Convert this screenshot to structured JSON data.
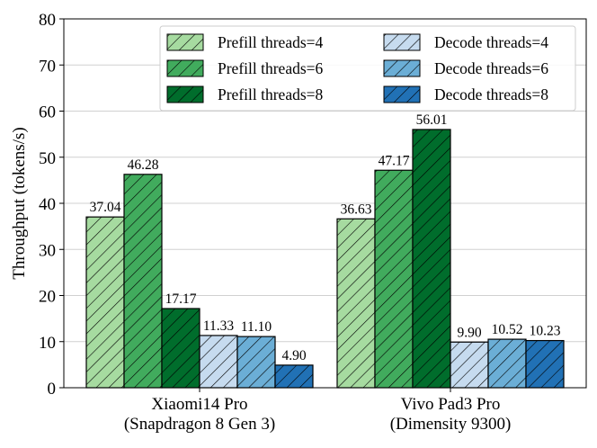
{
  "chart_data": {
    "type": "bar",
    "title": "",
    "xlabel": "",
    "ylabel": "Throughput (tokens/s)",
    "ylim": [
      0,
      80
    ],
    "yticks": [
      0,
      10,
      20,
      30,
      40,
      50,
      60,
      70,
      80
    ],
    "grid": true,
    "legend_position": "top-right",
    "categories": [
      [
        "Xiaomi14 Pro",
        "(Snapdragon 8 Gen 3)"
      ],
      [
        "Vivo Pad3 Pro",
        "(Dimensity 9300)"
      ]
    ],
    "series": [
      {
        "name": "Prefill threads=4",
        "color": "#a6dba0",
        "values": [
          37.04,
          36.63
        ],
        "labels": [
          "37.04",
          "36.63"
        ]
      },
      {
        "name": "Prefill threads=6",
        "color": "#41ab5d",
        "values": [
          46.28,
          47.17
        ],
        "labels": [
          "46.28",
          "47.17"
        ]
      },
      {
        "name": "Prefill threads=8",
        "color": "#006d2c",
        "values": [
          17.17,
          56.01
        ],
        "labels": [
          "17.17",
          "56.01"
        ]
      },
      {
        "name": "Decode threads=4",
        "color": "#c6dbef",
        "values": [
          11.33,
          9.9
        ],
        "labels": [
          "11.33",
          "9.90"
        ]
      },
      {
        "name": "Decode threads=6",
        "color": "#6baed6",
        "values": [
          11.1,
          10.52
        ],
        "labels": [
          "11.10",
          "10.52"
        ]
      },
      {
        "name": "Decode threads=8",
        "color": "#2171b5",
        "values": [
          4.9,
          10.23
        ],
        "labels": [
          "4.90",
          "10.23"
        ]
      }
    ]
  }
}
